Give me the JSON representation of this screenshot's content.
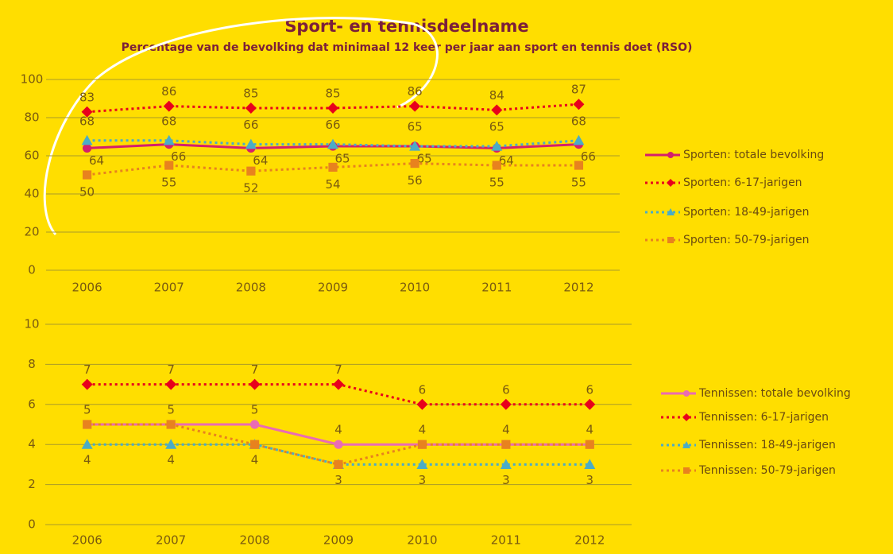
{
  "chart_data": [
    {
      "type": "line",
      "title": "Sport- en tennisdeelname",
      "subtitle": "Percentage van de bevolking dat minimaal 12 keer per jaar aan sport en tennis doet (RSO)",
      "categories": [
        "2006",
        "2007",
        "2008",
        "2009",
        "2010",
        "2011",
        "2012"
      ],
      "ylim": [
        0,
        100
      ],
      "yticks": [
        0,
        20,
        40,
        60,
        80,
        100
      ],
      "grid": true,
      "legend": "right",
      "series": [
        {
          "name": "Sporten: totale bevolking",
          "color": "#d41f6c",
          "line_style": "solid",
          "marker": "circle",
          "values": [
            64,
            66,
            64,
            65,
            65,
            64,
            66
          ]
        },
        {
          "name": "Sporten: 6-17-jarigen",
          "color": "#e8001c",
          "line_style": "dotted",
          "marker": "diamond",
          "values": [
            83,
            86,
            85,
            85,
            86,
            84,
            87
          ]
        },
        {
          "name": "Sporten: 18-49-jarigen",
          "color": "#4bacc6",
          "line_style": "dotted",
          "marker": "triangle",
          "values": [
            68,
            68,
            66,
            66,
            65,
            65,
            68
          ]
        },
        {
          "name": "Sporten: 50-79-jarigen",
          "color": "#e8821e",
          "line_style": "dotted",
          "marker": "square",
          "values": [
            50,
            55,
            52,
            54,
            56,
            55,
            55
          ]
        }
      ]
    },
    {
      "type": "line",
      "categories": [
        "2006",
        "2007",
        "2008",
        "2009",
        "2010",
        "2011",
        "2012"
      ],
      "ylim": [
        0,
        10
      ],
      "yticks": [
        0,
        2,
        4,
        6,
        8,
        10
      ],
      "grid": true,
      "legend": "right",
      "series": [
        {
          "name": "Tennissen: totale bevolking",
          "color": "#ea6bb4",
          "line_style": "solid",
          "marker": "circle",
          "values": [
            5,
            5,
            5,
            4,
            4,
            4,
            4
          ]
        },
        {
          "name": "Tennissen: 6-17-jarigen",
          "color": "#e8001c",
          "line_style": "dotted",
          "marker": "diamond",
          "values": [
            7,
            7,
            7,
            7,
            6,
            6,
            6
          ]
        },
        {
          "name": "Tennissen: 18-49-jarigen",
          "color": "#4bacc6",
          "line_style": "dotted",
          "marker": "triangle",
          "values": [
            4,
            4,
            4,
            3,
            3,
            3,
            3
          ]
        },
        {
          "name": "Tennissen: 50-79-jarigen",
          "color": "#e8821e",
          "line_style": "dotted",
          "marker": "square",
          "values": [
            5,
            5,
            4,
            3,
            4,
            4,
            4
          ]
        }
      ]
    }
  ]
}
